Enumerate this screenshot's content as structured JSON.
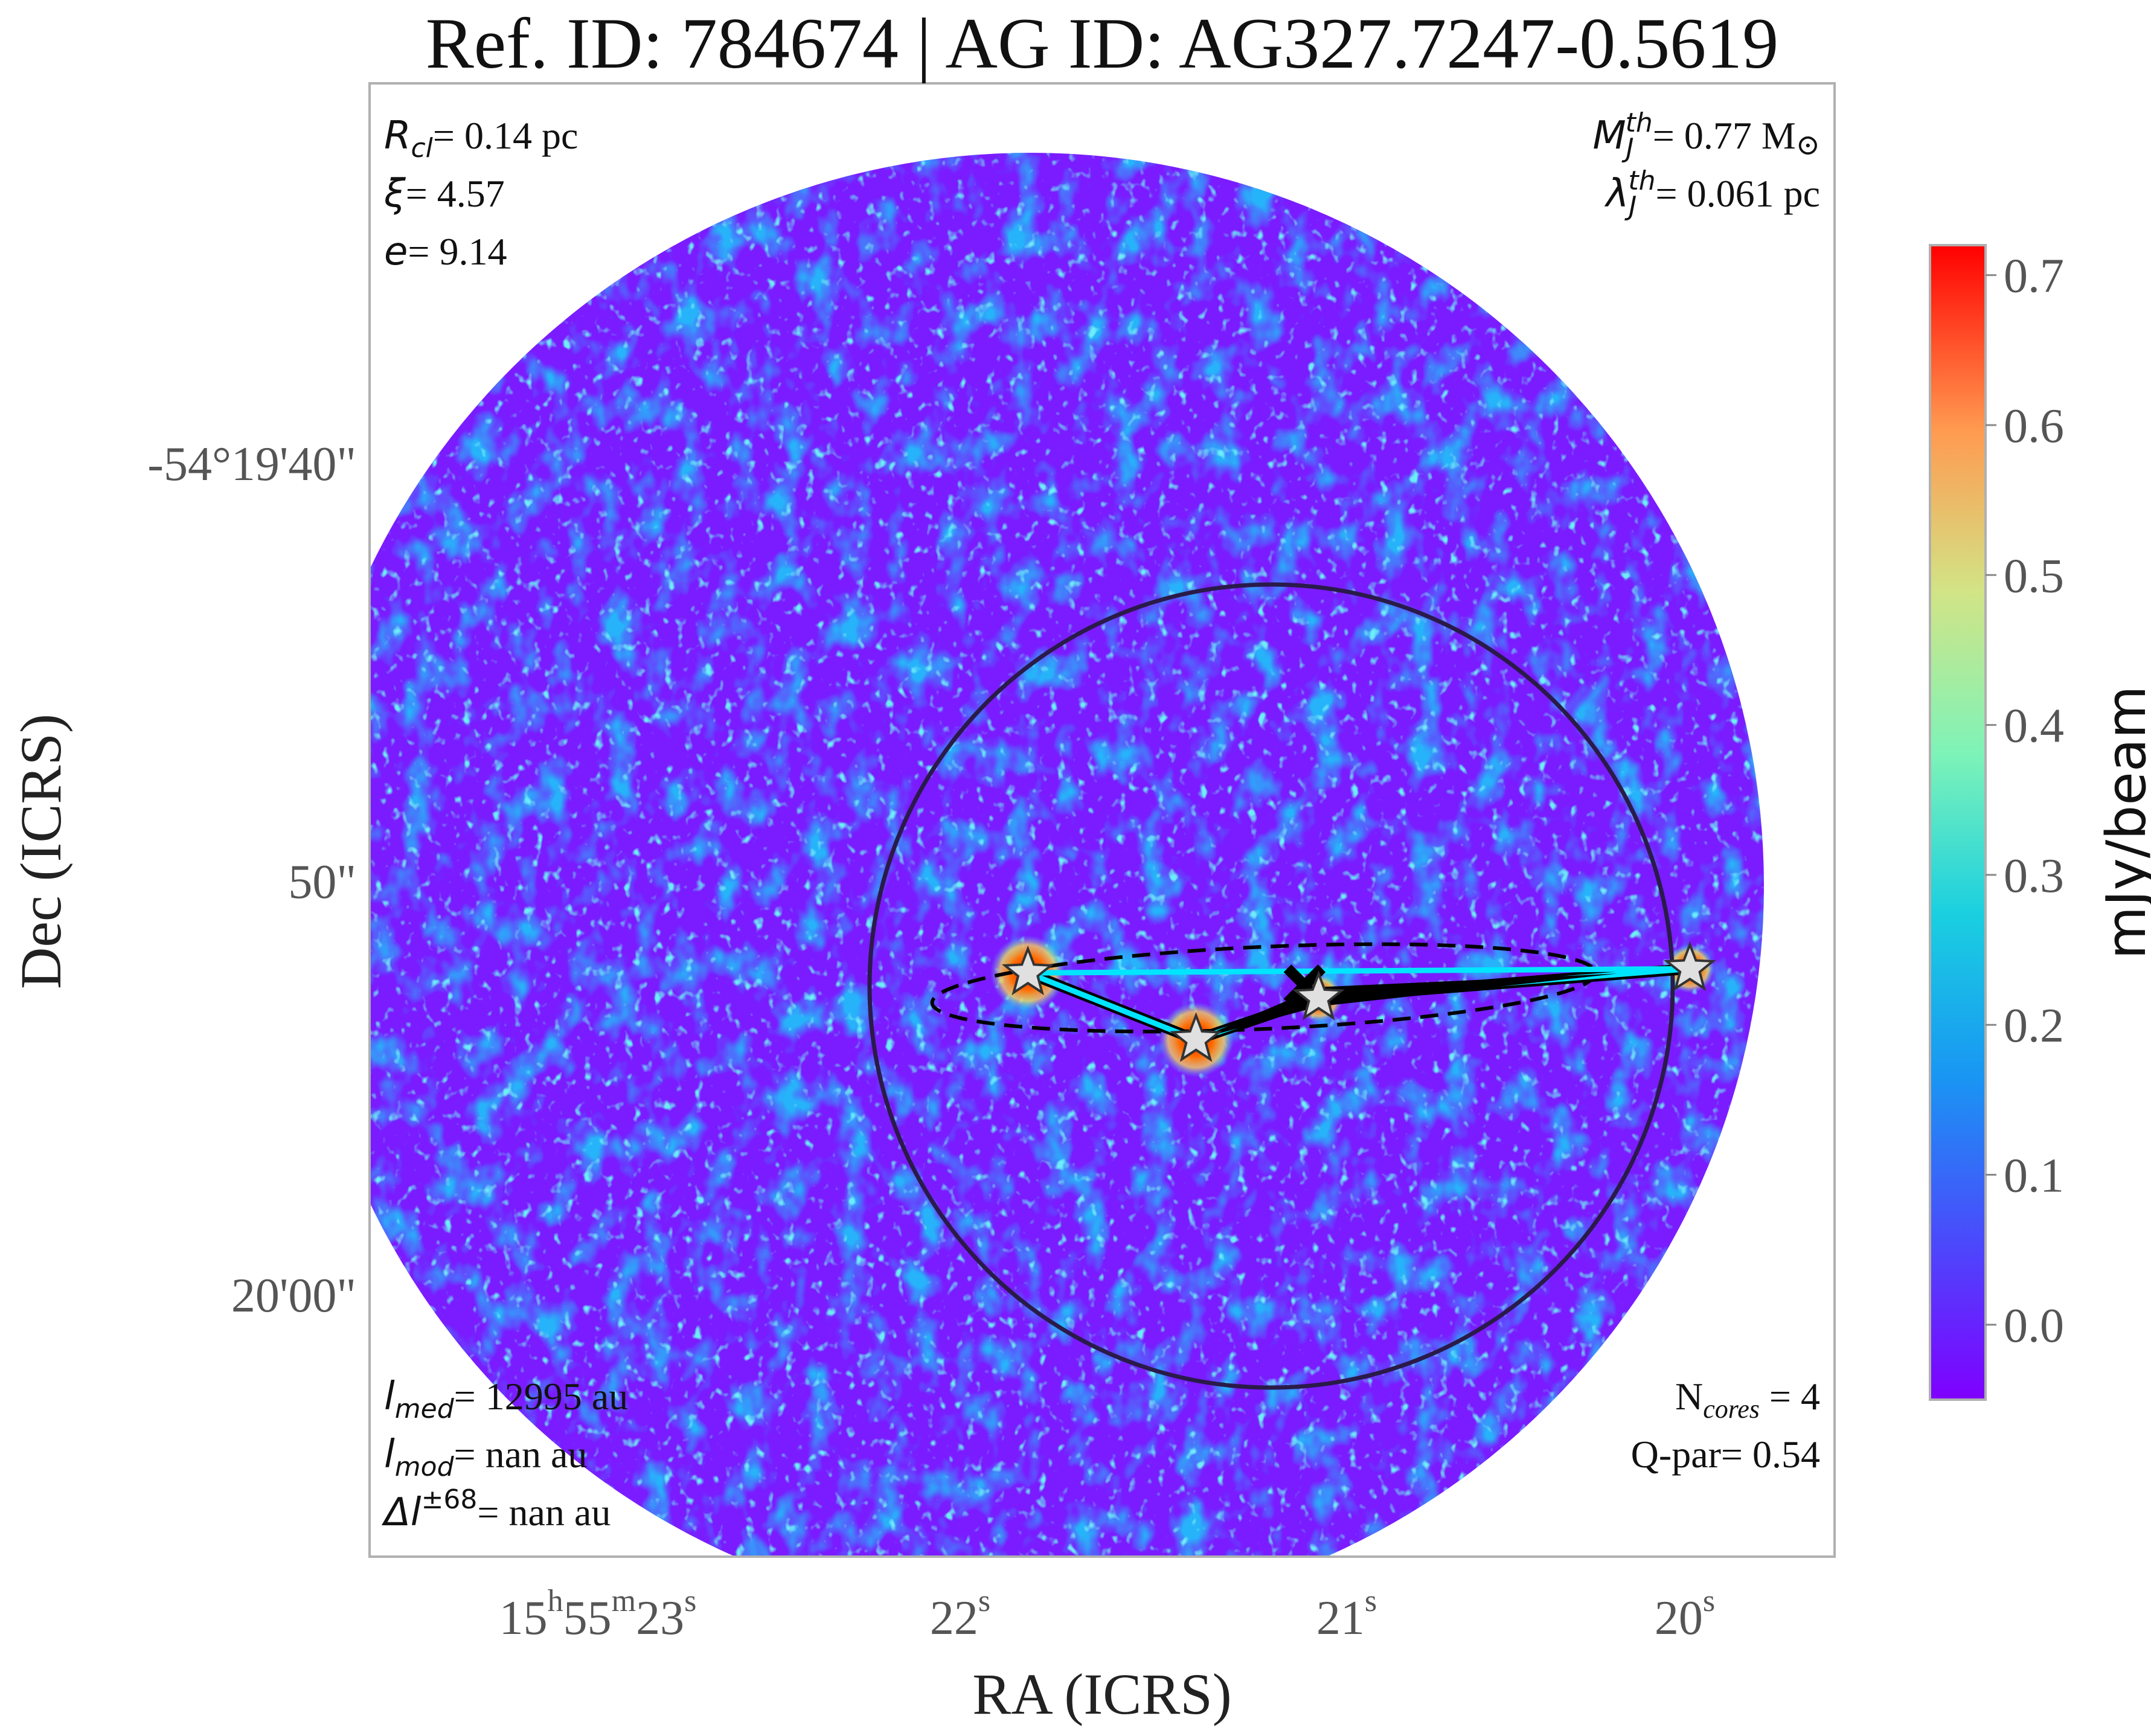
{
  "chart_data": {
    "type": "heatmap",
    "title": "Ref. ID: 784674 | AG ID: AG327.7247-0.5619",
    "xlabel": "RA (ICRS)",
    "ylabel": "Dec (ICRS)",
    "x_ticks": [
      {
        "pre": "15",
        "h": "h",
        "mid1": "55",
        "m": "m",
        "mid2": "23",
        "s": "s"
      },
      {
        "val": "22",
        "s": "s"
      },
      {
        "val": "21",
        "s": "s"
      },
      {
        "val": "20",
        "s": "s"
      }
    ],
    "y_ticks": [
      "-54°19'40\"",
      "50\"",
      "20'00\""
    ],
    "colorbar": {
      "label": "mJy/beam",
      "ticks": [
        "0.0",
        "0.1",
        "0.2",
        "0.3",
        "0.4",
        "0.5",
        "0.6",
        "0.7"
      ],
      "min": -0.05,
      "max": 0.72,
      "colormap": "rainbow"
    },
    "annotations_top_left": [
      {
        "sym": "R",
        "sub": "cl",
        "sup": "",
        "value": "= 0.14 pc"
      },
      {
        "sym": "ξ",
        "sub": "",
        "sup": "",
        "value": "= 4.57"
      },
      {
        "sym": "e",
        "sub": "",
        "sup": "",
        "value": "= 9.14"
      }
    ],
    "annotations_top_right": [
      {
        "sym": "M",
        "sub": "J",
        "sup": "th",
        "value": "= 0.77 M",
        "suffix": "⊙"
      },
      {
        "sym": "λ",
        "sub": "J",
        "sup": "th",
        "value": "= 0.061 pc",
        "suffix": ""
      }
    ],
    "annotations_bottom_left": [
      {
        "sym": "l",
        "sub": "med",
        "sup": "",
        "value": "= 12995 au"
      },
      {
        "sym": "l",
        "sub": "mod",
        "sup": "",
        "value": "= nan au"
      },
      {
        "sym": "Δl",
        "sub": "",
        "sup": "±68",
        "value": "= nan au"
      }
    ],
    "annotations_bottom_right": [
      {
        "pre": "N",
        "sub": "cores",
        "value": " = 4"
      },
      {
        "pre": "Q-par",
        "sub": "",
        "value": "= 0.54"
      }
    ],
    "cores": [
      {
        "ra_s": 21.91,
        "dec_off_arcsec": 51.9
      },
      {
        "ra_s": 21.43,
        "dec_off_arcsec": 53.5
      },
      {
        "ra_s": 21.08,
        "dec_off_arcsec": 52.5
      },
      {
        "ra_s": 20.02,
        "dec_off_arcsec": 51.8
      }
    ],
    "centroid": {
      "ra_s": 21.12,
      "dec_off_arcsec": 52.2
    },
    "mst_edges": [
      [
        0,
        1
      ],
      [
        1,
        2
      ],
      [
        2,
        3
      ]
    ],
    "colors": {
      "core_outline": "#d62020",
      "mst_line": "#00e5ff",
      "mst_thick": "#000000",
      "cluster_circle": "#2a1a4a",
      "frame": "#b0b0b0"
    }
  }
}
